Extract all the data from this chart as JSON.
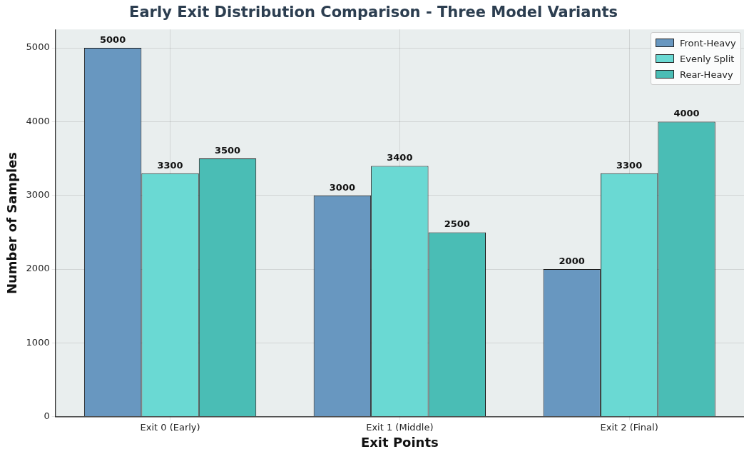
{
  "chart_data": {
    "type": "bar",
    "title": "Early Exit Distribution Comparison - Three Model Variants",
    "xlabel": "Exit Points",
    "ylabel": "Number of Samples",
    "categories": [
      "Exit 0 (Early)",
      "Exit 1 (Middle)",
      "Exit 2 (Final)"
    ],
    "series": [
      {
        "name": "Front-Heavy",
        "color": "#6897c0",
        "values": [
          5000,
          3000,
          2000
        ]
      },
      {
        "name": "Evenly Split",
        "color": "#6ad9d3",
        "values": [
          3300,
          3400,
          3300
        ]
      },
      {
        "name": "Rear-Heavy",
        "color": "#4abdb5",
        "values": [
          3500,
          2500,
          4000
        ]
      }
    ],
    "ylim": [
      0,
      5250
    ],
    "yticks": [
      0,
      1000,
      2000,
      3000,
      4000,
      5000
    ],
    "grid": true,
    "legend": "top right",
    "data_labels": true
  }
}
